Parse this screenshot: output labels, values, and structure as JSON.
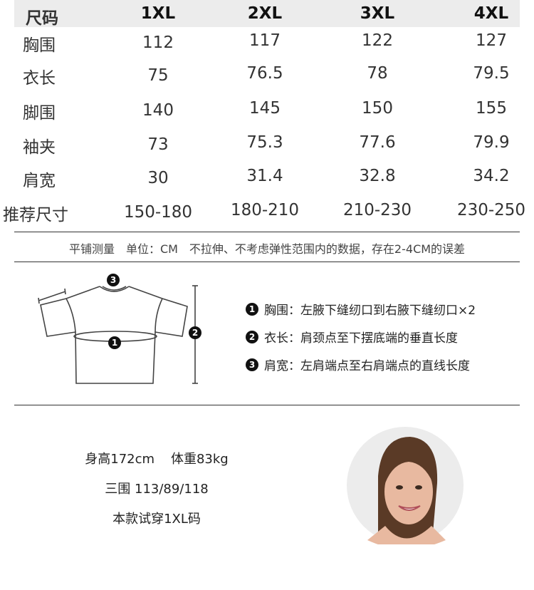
{
  "table": {
    "header": [
      "尺码",
      "1XL",
      "2XL",
      "3XL",
      "4XL"
    ],
    "rows": [
      [
        "胸围",
        "112",
        "117",
        "122",
        "127"
      ],
      [
        "衣长",
        "75",
        "76.5",
        "78",
        "79.5"
      ],
      [
        "脚围",
        "140",
        "145",
        "150",
        "155"
      ],
      [
        "袖夹",
        "73",
        "75.3",
        "77.6",
        "79.9"
      ],
      [
        "肩宽",
        "30",
        "31.4",
        "32.8",
        "34.2"
      ],
      [
        "推荐尺寸",
        "150-180",
        "180-210",
        "210-230",
        "230-250"
      ]
    ]
  },
  "note": "平铺测量　单位：CM　不拉伸、不考虑弹性范围内的数据，存在2-4CM的误差",
  "diagram": {
    "markers": [
      "1",
      "2",
      "3"
    ],
    "legend": [
      {
        "num": "1",
        "text": "胸围：左腋下缝纫口到右腋下缝纫口×2"
      },
      {
        "num": "2",
        "text": "衣长：肩颈点至下摆底端的垂直长度"
      },
      {
        "num": "3",
        "text": "肩宽：左肩端点至右肩端点的直线长度"
      }
    ]
  },
  "model": {
    "line1a": "身高172cm",
    "line1b": "体重83kg",
    "line2": "三围 113/89/118",
    "line3": "本款试穿1XL码"
  }
}
